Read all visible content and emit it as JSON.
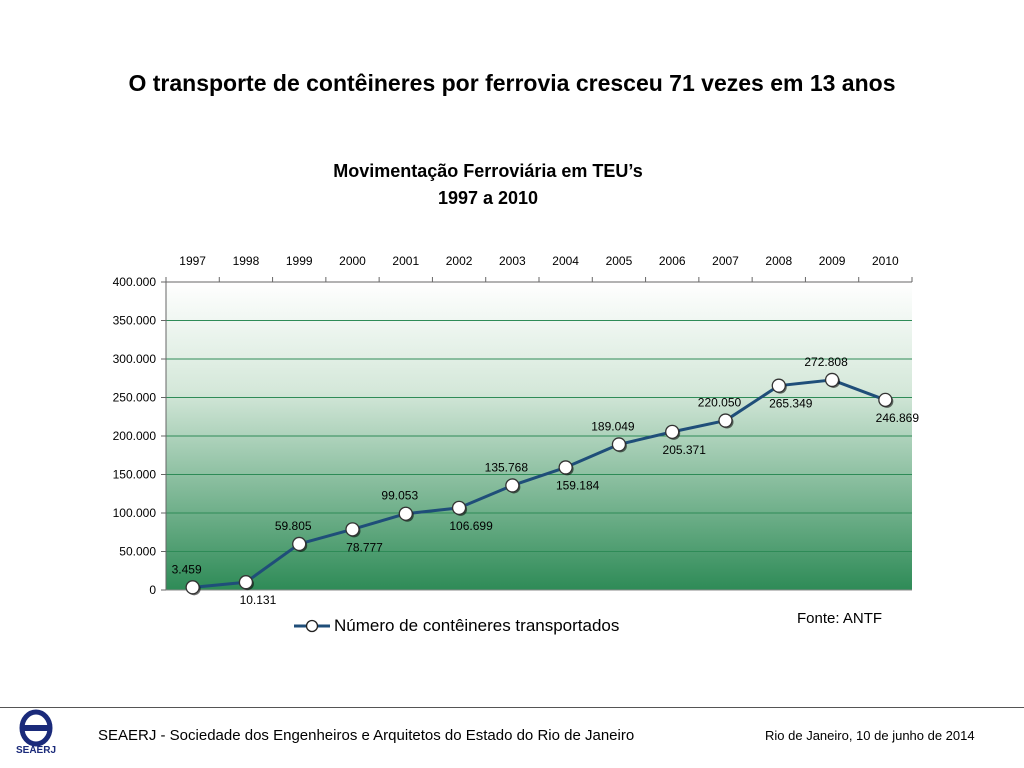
{
  "slide": {
    "headline": "O transporte de contêineres por ferrovia cresceu 71 vezes em 13 anos",
    "source": "Fonte: ANTF"
  },
  "footer": {
    "logo_text": "SEAERJ",
    "organization": "SEAERJ - Sociedade dos Engenheiros e Arquitetos do Estado do Rio de Janeiro",
    "date": "Rio de Janeiro, 10 de junho de 2014"
  },
  "chart_data": {
    "type": "line",
    "title": "Movimentação Ferroviária em TEU’s",
    "subtitle": "1997 a 2010",
    "categories": [
      "1997",
      "1998",
      "1999",
      "2000",
      "2001",
      "2002",
      "2003",
      "2004",
      "2005",
      "2006",
      "2007",
      "2008",
      "2009",
      "2010"
    ],
    "series": [
      {
        "name": "Número de contêineres transportados",
        "values": [
          3459,
          10131,
          59805,
          78777,
          99053,
          106699,
          135768,
          159184,
          189049,
          205371,
          220050,
          265349,
          272808,
          246869
        ],
        "labels": [
          "3.459",
          "10.131",
          "59.805",
          "78.777",
          "99.053",
          "106.699",
          "135.768",
          "159.184",
          "189.049",
          "205.371",
          "220.050",
          "265.349",
          "272.808",
          "246.869"
        ],
        "label_positions": [
          "above",
          "below",
          "above",
          "below",
          "above",
          "below",
          "above",
          "below",
          "above",
          "below",
          "above",
          "below",
          "above",
          "below"
        ]
      }
    ],
    "xlabel": "",
    "ylabel": "",
    "ylim": [
      0,
      400000
    ],
    "yticks": [
      0,
      50000,
      100000,
      150000,
      200000,
      250000,
      300000,
      350000,
      400000
    ],
    "ytick_labels": [
      "0",
      "50.000",
      "100.000",
      "150.000",
      "200.000",
      "250.000",
      "300.000",
      "350.000",
      "400.000"
    ],
    "x_axis_position": "top",
    "grid": true,
    "legend": "bottom-center",
    "colors": {
      "line": "#1f4e79",
      "marker_fill": "#ffffff",
      "grid": "#2e8b57",
      "background_top": "#ffffff",
      "background_bottom": "#2e8b57"
    }
  }
}
